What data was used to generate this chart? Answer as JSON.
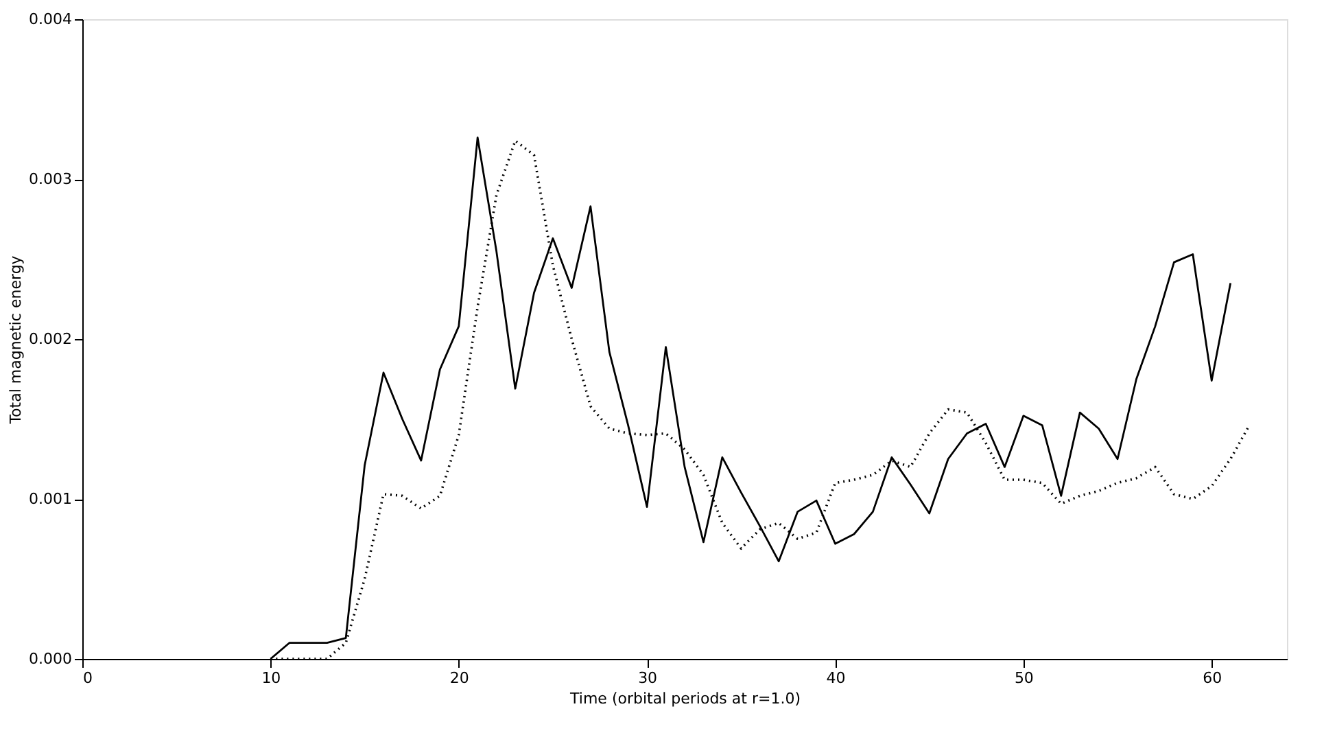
{
  "chart_data": {
    "type": "line",
    "xlabel": "Time (orbital periods at r=1.0)",
    "ylabel": "Total magnetic energy",
    "xlim": [
      0,
      64
    ],
    "xticks": [
      0,
      10,
      20,
      30,
      40,
      50,
      60
    ],
    "ylim": [
      0,
      0.004
    ],
    "yticks": [
      {
        "value": 0,
        "label": "0.000"
      },
      {
        "value": 0.001,
        "label": "0.001"
      },
      {
        "value": 0.002,
        "label": "0.002"
      },
      {
        "value": 0.003,
        "label": "0.003"
      },
      {
        "value": 0.004,
        "label": "0.004"
      }
    ],
    "grid": false,
    "series": [
      {
        "color": "#000000",
        "line_style": "solid",
        "x": [
          10,
          11,
          12,
          13,
          14,
          15,
          16,
          17,
          18,
          19,
          20,
          21,
          22,
          23,
          24,
          25,
          26,
          27,
          28,
          29,
          30,
          31,
          32,
          33,
          34,
          35,
          36,
          37,
          38,
          39,
          40,
          41,
          42,
          43,
          44,
          45,
          46,
          47,
          48,
          49,
          50,
          51,
          52,
          53,
          54,
          55,
          56,
          57,
          58,
          59,
          60,
          61
        ],
        "values": [
          0,
          0.0001,
          0.0001,
          0.0001,
          0.00013,
          0.00121,
          0.00179,
          0.0015,
          0.00124,
          0.00181,
          0.00208,
          0.00326,
          0.00255,
          0.00169,
          0.00229,
          0.00263,
          0.00232,
          0.00283,
          0.00192,
          0.00146,
          0.00095,
          0.00195,
          0.0012,
          0.00073,
          0.00126,
          0.00104,
          0.00083,
          0.00061,
          0.00092,
          0.00099,
          0.00072,
          0.00078,
          0.00092,
          0.00126,
          0.00109,
          0.00091,
          0.00125,
          0.00141,
          0.00147,
          0.0012,
          0.00152,
          0.00146,
          0.00102,
          0.00154,
          0.00144,
          0.00125,
          0.00175,
          0.00208,
          0.00248,
          0.00253,
          0.00174,
          0.00235
        ]
      },
      {
        "color": "#000000",
        "line_style": "dotted",
        "x": [
          10,
          11,
          12,
          13,
          14,
          15,
          16,
          17,
          18,
          19,
          20,
          21,
          22,
          23,
          24,
          25,
          26,
          27,
          28,
          29,
          30,
          31,
          32,
          33,
          34,
          35,
          36,
          37,
          38,
          39,
          40,
          41,
          42,
          43,
          44,
          45,
          46,
          47,
          48,
          49,
          50,
          51,
          52,
          53,
          54,
          55,
          56,
          57,
          58,
          59,
          60,
          61,
          62
        ],
        "values": [
          0,
          0,
          0,
          0,
          0.0001,
          0.0005,
          0.00103,
          0.00102,
          0.00094,
          0.00102,
          0.0014,
          0.0022,
          0.0029,
          0.00324,
          0.00315,
          0.00246,
          0.002,
          0.00158,
          0.00144,
          0.00141,
          0.0014,
          0.00141,
          0.00131,
          0.00115,
          0.00085,
          0.00069,
          0.00081,
          0.00085,
          0.00075,
          0.00079,
          0.0011,
          0.00112,
          0.00115,
          0.00124,
          0.0012,
          0.00141,
          0.00156,
          0.00154,
          0.00135,
          0.00112,
          0.00112,
          0.0011,
          0.00097,
          0.00102,
          0.00105,
          0.0011,
          0.00113,
          0.0012,
          0.00103,
          0.001,
          0.00108,
          0.00125,
          0.00146
        ]
      }
    ]
  }
}
